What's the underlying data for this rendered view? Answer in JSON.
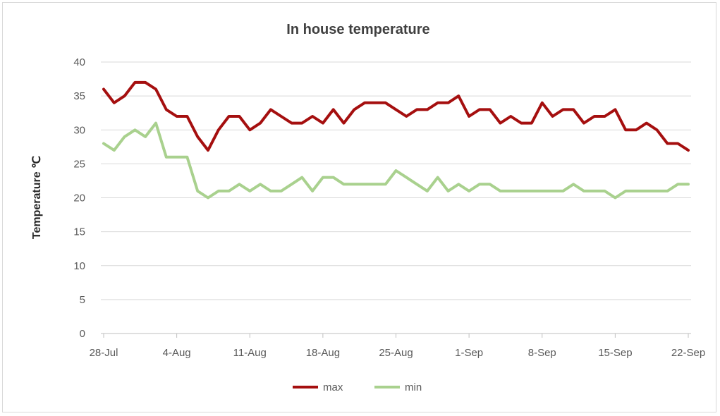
{
  "chart_data": {
    "type": "line",
    "title": "In house temperature",
    "ylabel": "Temperature  ℃",
    "xlabel": "",
    "ylim": [
      0,
      40
    ],
    "yticks": [
      "0",
      "5",
      "10",
      "15",
      "20",
      "25",
      "30",
      "35",
      "40"
    ],
    "xticks": [
      "28-Jul",
      "4-Aug",
      "11-Aug",
      "18-Aug",
      "25-Aug",
      "1-Sep",
      "8-Sep",
      "15-Sep",
      "22-Sep"
    ],
    "x_start": "28-Jul",
    "x_end": "22-Sep",
    "grid": "horizontal",
    "legend_position": "bottom",
    "series": [
      {
        "name": "max",
        "color": "#a50f0f",
        "values": [
          36,
          34,
          35,
          37,
          37,
          36,
          33,
          32,
          32,
          29,
          27,
          30,
          32,
          32,
          30,
          31,
          33,
          32,
          31,
          31,
          32,
          31,
          33,
          31,
          33,
          34,
          34,
          34,
          33,
          32,
          33,
          33,
          34,
          34,
          35,
          32,
          33,
          33,
          31,
          32,
          31,
          31,
          34,
          32,
          33,
          33,
          31,
          32,
          32,
          33,
          30,
          30,
          31,
          30,
          28,
          28,
          27
        ]
      },
      {
        "name": "min",
        "color": "#a9d18e",
        "values": [
          28,
          27,
          29,
          30,
          29,
          31,
          26,
          26,
          26,
          21,
          20,
          21,
          21,
          22,
          21,
          22,
          21,
          21,
          22,
          23,
          21,
          23,
          23,
          22,
          22,
          22,
          22,
          22,
          24,
          23,
          22,
          21,
          23,
          21,
          22,
          21,
          22,
          22,
          21,
          21,
          21,
          21,
          21,
          21,
          21,
          22,
          21,
          21,
          21,
          20,
          21,
          21,
          21,
          21,
          21,
          22,
          22
        ]
      }
    ]
  }
}
